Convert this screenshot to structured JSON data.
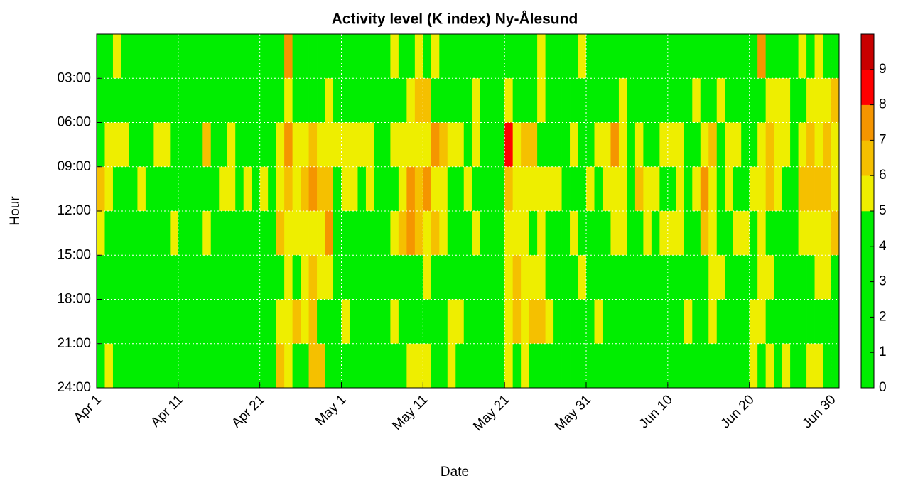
{
  "chart_data": {
    "type": "heatmap",
    "title": "Activity level (K index) Ny-Ålesund",
    "xlabel": "Date",
    "ylabel": "Hour",
    "xlim": [
      0,
      91
    ],
    "xticks": [
      {
        "value": 0,
        "label": "Apr 1"
      },
      {
        "value": 10,
        "label": "Apr 11"
      },
      {
        "value": 20,
        "label": "Apr 21"
      },
      {
        "value": 30,
        "label": "May 1"
      },
      {
        "value": 40,
        "label": "May 11"
      },
      {
        "value": 50,
        "label": "May 21"
      },
      {
        "value": 60,
        "label": "May 31"
      },
      {
        "value": 70,
        "label": "Jun 10"
      },
      {
        "value": 80,
        "label": "Jun 20"
      },
      {
        "value": 90,
        "label": "Jun 30"
      }
    ],
    "ylim": [
      24,
      0
    ],
    "yticks": [
      {
        "value": 3,
        "label": "03:00"
      },
      {
        "value": 6,
        "label": "06:00"
      },
      {
        "value": 9,
        "label": "09:00"
      },
      {
        "value": 12,
        "label": "12:00"
      },
      {
        "value": 15,
        "label": "15:00"
      },
      {
        "value": 18,
        "label": "18:00"
      },
      {
        "value": 21,
        "label": "21:00"
      },
      {
        "value": 24,
        "label": "24:00"
      }
    ],
    "ybins": [
      0,
      3,
      6,
      9,
      12,
      15,
      18,
      21,
      24
    ],
    "grid": true,
    "colorbar": {
      "levels": [
        0,
        5,
        6,
        7,
        8,
        9,
        10
      ],
      "colors": [
        "#00ee00",
        "#eeee00",
        "#f5c000",
        "#f59500",
        "#ff0000",
        "#c80000"
      ],
      "ticks": [
        0,
        1,
        2,
        3,
        4,
        5,
        6,
        7,
        8,
        9
      ]
    },
    "z": [
      [
        3,
        3,
        3,
        6,
        5,
        3,
        3,
        3
      ],
      [
        3,
        3,
        5,
        5,
        3,
        3,
        3,
        5
      ],
      [
        5,
        3,
        5,
        3,
        3,
        3,
        3,
        3
      ],
      [
        3,
        3,
        5,
        3,
        3,
        3,
        3,
        3
      ],
      [
        3,
        3,
        3,
        3,
        3,
        3,
        3,
        3
      ],
      [
        3,
        3,
        3,
        5,
        3,
        3,
        3,
        3
      ],
      [
        3,
        3,
        3,
        3,
        3,
        3,
        3,
        3
      ],
      [
        3,
        3,
        5,
        3,
        3,
        3,
        3,
        3
      ],
      [
        3,
        3,
        5,
        3,
        3,
        3,
        3,
        3
      ],
      [
        3,
        3,
        3,
        3,
        5,
        3,
        3,
        3
      ],
      [
        3,
        3,
        3,
        3,
        3,
        3,
        3,
        3
      ],
      [
        3,
        3,
        3,
        3,
        3,
        3,
        3,
        3
      ],
      [
        3,
        3,
        3,
        3,
        3,
        3,
        3,
        3
      ],
      [
        3,
        3,
        6,
        3,
        5,
        3,
        3,
        3
      ],
      [
        3,
        3,
        3,
        3,
        3,
        3,
        3,
        3
      ],
      [
        3,
        3,
        3,
        5,
        3,
        3,
        3,
        3
      ],
      [
        3,
        3,
        5,
        5,
        3,
        3,
        3,
        3
      ],
      [
        3,
        3,
        3,
        3,
        3,
        3,
        3,
        3
      ],
      [
        3,
        3,
        3,
        5,
        3,
        3,
        3,
        3
      ],
      [
        3,
        3,
        3,
        3,
        3,
        3,
        3,
        3
      ],
      [
        3,
        3,
        3,
        5,
        3,
        3,
        3,
        3
      ],
      [
        3,
        3,
        3,
        3,
        3,
        3,
        3,
        3
      ],
      [
        3,
        3,
        5,
        5,
        6,
        3,
        5,
        6
      ],
      [
        7,
        5,
        7,
        6,
        5,
        5,
        5,
        5
      ],
      [
        3,
        3,
        5,
        5,
        5,
        3,
        6,
        3
      ],
      [
        3,
        3,
        5,
        6,
        5,
        5,
        5,
        3
      ],
      [
        3,
        3,
        6,
        7,
        5,
        6,
        6,
        6
      ],
      [
        3,
        3,
        5,
        6,
        5,
        5,
        3,
        6
      ],
      [
        3,
        5,
        5,
        6,
        7,
        5,
        3,
        3
      ],
      [
        3,
        3,
        5,
        3,
        3,
        3,
        3,
        3
      ],
      [
        3,
        3,
        5,
        5,
        3,
        3,
        5,
        3
      ],
      [
        3,
        3,
        5,
        5,
        3,
        3,
        3,
        3
      ],
      [
        3,
        3,
        5,
        3,
        3,
        3,
        3,
        3
      ],
      [
        3,
        3,
        5,
        5,
        3,
        3,
        3,
        3
      ],
      [
        3,
        3,
        3,
        3,
        3,
        3,
        3,
        3
      ],
      [
        3,
        3,
        3,
        3,
        3,
        3,
        3,
        3
      ],
      [
        5,
        3,
        5,
        3,
        5,
        3,
        5,
        3
      ],
      [
        3,
        3,
        5,
        5,
        6,
        3,
        3,
        3
      ],
      [
        3,
        5,
        5,
        7,
        7,
        3,
        3,
        5
      ],
      [
        5,
        6,
        5,
        6,
        6,
        3,
        3,
        5
      ],
      [
        3,
        6,
        5,
        7,
        5,
        5,
        3,
        5
      ],
      [
        5,
        3,
        7,
        5,
        6,
        3,
        3,
        3
      ],
      [
        3,
        3,
        6,
        5,
        5,
        3,
        3,
        3
      ],
      [
        3,
        3,
        5,
        3,
        3,
        3,
        5,
        5
      ],
      [
        3,
        3,
        5,
        3,
        3,
        3,
        5,
        3
      ],
      [
        3,
        3,
        3,
        5,
        3,
        3,
        3,
        3
      ],
      [
        3,
        5,
        5,
        3,
        5,
        3,
        3,
        3
      ],
      [
        3,
        3,
        3,
        3,
        3,
        3,
        3,
        3
      ],
      [
        3,
        3,
        3,
        3,
        3,
        3,
        3,
        3
      ],
      [
        3,
        3,
        3,
        3,
        3,
        3,
        3,
        3
      ],
      [
        3,
        5,
        8,
        6,
        5,
        5,
        5,
        5
      ],
      [
        3,
        3,
        5,
        5,
        5,
        6,
        6,
        3
      ],
      [
        3,
        3,
        6,
        5,
        5,
        5,
        5,
        5
      ],
      [
        3,
        3,
        6,
        5,
        3,
        5,
        6,
        3
      ],
      [
        5,
        5,
        3,
        5,
        5,
        5,
        6,
        3
      ],
      [
        3,
        3,
        3,
        5,
        3,
        3,
        5,
        3
      ],
      [
        3,
        3,
        3,
        5,
        3,
        3,
        3,
        3
      ],
      [
        3,
        3,
        3,
        3,
        3,
        3,
        3,
        3
      ],
      [
        3,
        3,
        5,
        3,
        5,
        3,
        3,
        3
      ],
      [
        5,
        3,
        3,
        3,
        3,
        5,
        3,
        3
      ],
      [
        3,
        3,
        3,
        5,
        3,
        3,
        3,
        3
      ],
      [
        3,
        3,
        5,
        3,
        3,
        3,
        5,
        3
      ],
      [
        3,
        3,
        5,
        5,
        3,
        3,
        3,
        3
      ],
      [
        3,
        3,
        7,
        5,
        5,
        3,
        3,
        3
      ],
      [
        3,
        5,
        5,
        5,
        5,
        3,
        3,
        3
      ],
      [
        3,
        3,
        3,
        3,
        3,
        3,
        3,
        3
      ],
      [
        3,
        3,
        5,
        6,
        3,
        3,
        3,
        3
      ],
      [
        3,
        3,
        3,
        5,
        5,
        3,
        3,
        3
      ],
      [
        3,
        3,
        3,
        5,
        3,
        3,
        3,
        3
      ],
      [
        3,
        3,
        5,
        3,
        5,
        3,
        3,
        3
      ],
      [
        3,
        3,
        5,
        3,
        5,
        3,
        3,
        3
      ],
      [
        3,
        3,
        5,
        5,
        5,
        3,
        3,
        3
      ],
      [
        3,
        3,
        3,
        3,
        3,
        3,
        5,
        3
      ],
      [
        3,
        5,
        3,
        5,
        3,
        3,
        3,
        3
      ],
      [
        3,
        3,
        5,
        7,
        6,
        3,
        3,
        3
      ],
      [
        3,
        3,
        6,
        5,
        5,
        5,
        5,
        3
      ],
      [
        3,
        5,
        3,
        3,
        3,
        5,
        3,
        3
      ],
      [
        3,
        3,
        5,
        5,
        3,
        3,
        3,
        3
      ],
      [
        3,
        3,
        5,
        3,
        5,
        3,
        3,
        3
      ],
      [
        3,
        3,
        3,
        3,
        5,
        3,
        3,
        3
      ],
      [
        3,
        3,
        3,
        5,
        3,
        3,
        5,
        5
      ],
      [
        7,
        3,
        5,
        5,
        5,
        5,
        5,
        3
      ],
      [
        3,
        5,
        6,
        6,
        3,
        5,
        3,
        5
      ],
      [
        3,
        5,
        5,
        5,
        3,
        3,
        3,
        3
      ],
      [
        3,
        5,
        5,
        3,
        3,
        3,
        3,
        5
      ],
      [
        3,
        3,
        3,
        3,
        3,
        3,
        3,
        3
      ],
      [
        5,
        3,
        5,
        6,
        5,
        3,
        3,
        3
      ],
      [
        3,
        5,
        6,
        6,
        5,
        3,
        3,
        5
      ],
      [
        5,
        5,
        5,
        6,
        5,
        5,
        3,
        5
      ],
      [
        3,
        5,
        6,
        6,
        5,
        5,
        3,
        3
      ],
      [
        3,
        6,
        5,
        5,
        6,
        3,
        3,
        3
      ]
    ]
  }
}
